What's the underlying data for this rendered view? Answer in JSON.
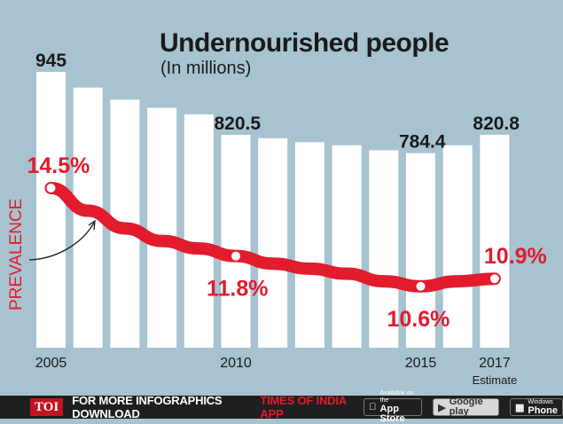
{
  "chart_data": {
    "type": "bar",
    "title": "Undernourished people",
    "subtitle": "(In millions)",
    "categories": [
      "2005",
      "2006",
      "2007",
      "2008",
      "2009",
      "2010",
      "2011",
      "2012",
      "2013",
      "2014",
      "2015",
      "2016",
      "2017"
    ],
    "tick_labels": [
      "2005",
      "",
      "",
      "",
      "",
      "2010",
      "",
      "",
      "",
      "",
      "2015",
      "",
      "2017"
    ],
    "tick_sublabel": "Estimate",
    "series": [
      {
        "values": [
          945,
          914,
          890,
          874,
          861,
          820.5,
          814,
          806,
          800,
          790,
          784.4,
          800,
          820.8
        ]
      },
      {
        "name": "PREVALENCE",
        "type": "line",
        "values": [
          14.5,
          13.6,
          12.9,
          12.4,
          12.1,
          11.8,
          11.5,
          11.3,
          11.1,
          10.8,
          10.6,
          10.8,
          10.9
        ]
      }
    ],
    "bar_labels": [
      {
        "category": "2005",
        "text": "945"
      },
      {
        "category": "2010",
        "text": "820.5"
      },
      {
        "category": "2015",
        "text": "784.4"
      },
      {
        "category": "2017",
        "text": "820.8"
      }
    ],
    "line_labels": [
      {
        "category": "2005",
        "text": "14.5%"
      },
      {
        "category": "2010",
        "text": "11.8%"
      },
      {
        "category": "2015",
        "text": "10.6%"
      },
      {
        "category": "2017",
        "text": "10.9%"
      }
    ],
    "colors": {
      "bars": "#ffffff",
      "line": "#e21b2d",
      "background": "#a7c3d0",
      "text": "#1a1a1a"
    }
  },
  "footer": {
    "logo": "TOI",
    "text": "FOR MORE  INFOGRAPHICS DOWNLOAD",
    "app_name": "TIMES OF INDIA  APP",
    "badges": [
      {
        "small": "Available on the",
        "big": "App Store",
        "icon": "apple-icon"
      },
      {
        "small": "",
        "big": "Google play",
        "icon": "play-icon"
      },
      {
        "small": "Windows",
        "big": "Phone",
        "icon": "windows-icon"
      }
    ]
  }
}
